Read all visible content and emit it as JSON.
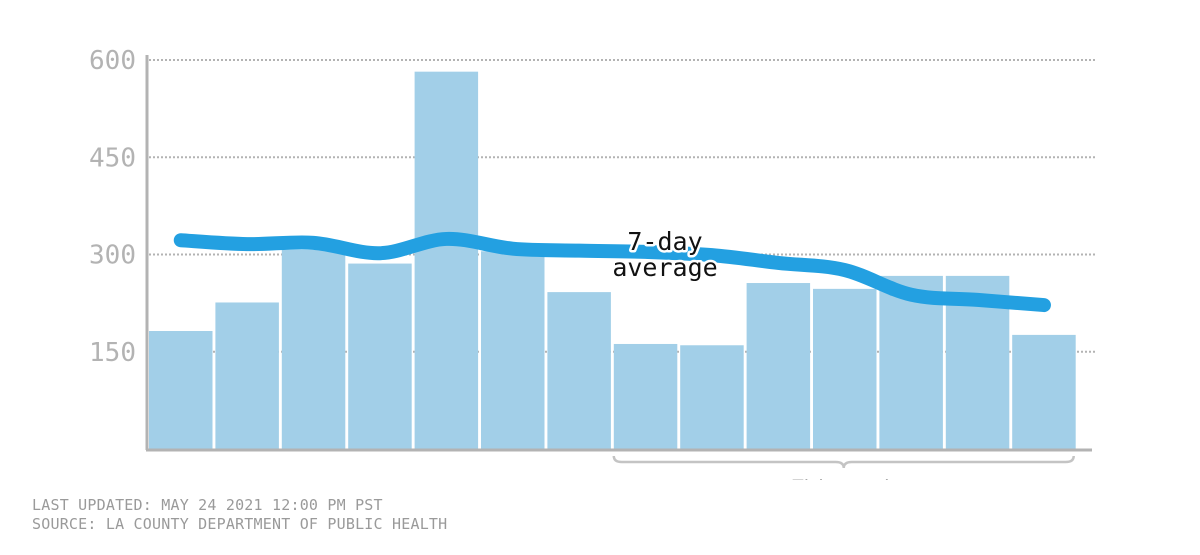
{
  "chart_data": {
    "type": "bar",
    "categories": [
      "",
      "",
      "",
      "",
      "",
      "",
      "",
      "",
      "",
      "",
      "",
      "",
      "",
      ""
    ],
    "values": [
      182,
      226,
      307,
      286,
      582,
      305,
      242,
      162,
      160,
      256,
      247,
      267,
      267,
      176
    ],
    "yticks": [
      150,
      300,
      450,
      600
    ],
    "ylim": [
      0,
      600
    ],
    "grid": true,
    "series": [
      {
        "values": [
          322,
          316,
          318,
          302,
          324,
          309,
          306,
          304,
          299,
          287,
          276,
          238,
          230,
          222
        ]
      }
    ],
    "annotations": [
      {
        "text_lines": [
          "7-day",
          "average"
        ]
      },
      {
        "text": "This week",
        "range": [
          7,
          13
        ]
      }
    ]
  },
  "footer": {
    "updated": "LAST UPDATED: MAY 24 2021 12:00 PM PST",
    "source": "SOURCE: LA COUNTY DEPARTMENT OF PUBLIC HEALTH"
  },
  "colors": {
    "bar": "#a2cfe8",
    "line": "#23a0e1",
    "axis": "#b3b3b3"
  }
}
